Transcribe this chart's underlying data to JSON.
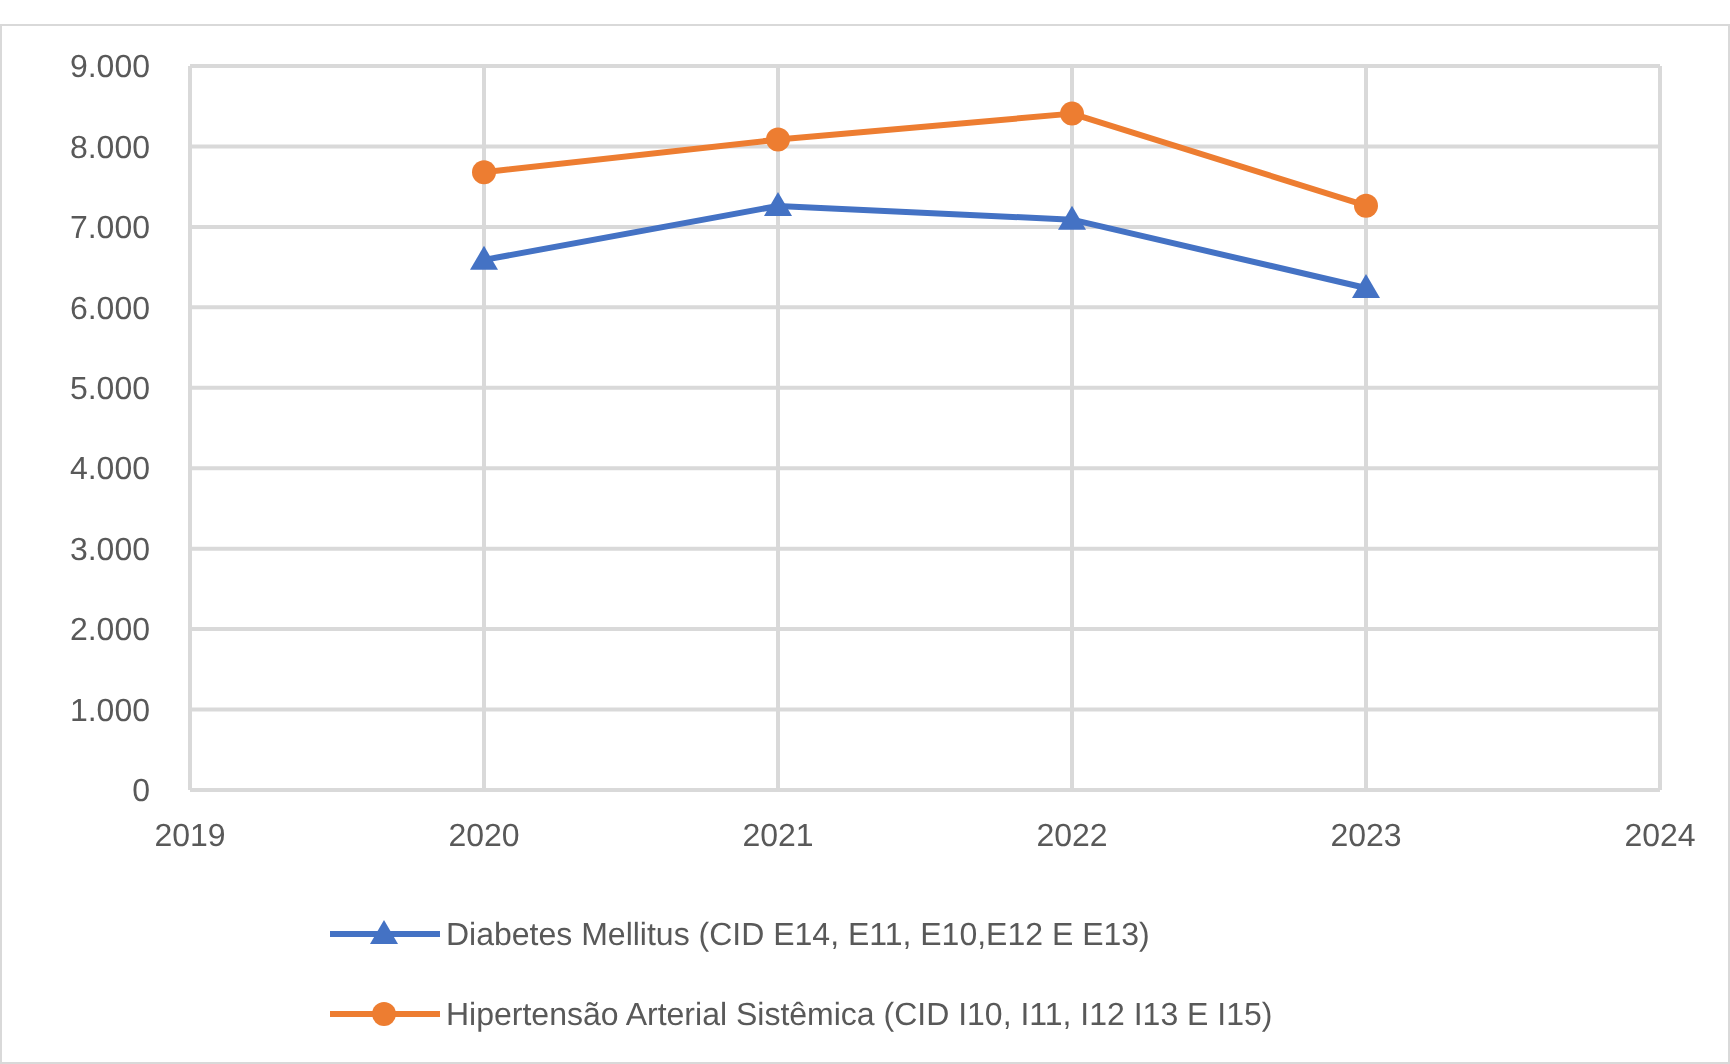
{
  "chart_data": {
    "type": "line",
    "x": [
      2020,
      2021,
      2022,
      2023
    ],
    "xlim": [
      2019,
      2024
    ],
    "xticks": [
      2019,
      2020,
      2021,
      2022,
      2023,
      2024
    ],
    "ylim": [
      0,
      9000
    ],
    "yticks": [
      {
        "value": 0,
        "label": "0"
      },
      {
        "value": 1000,
        "label": "1.000"
      },
      {
        "value": 2000,
        "label": "2.000"
      },
      {
        "value": 3000,
        "label": "3.000"
      },
      {
        "value": 4000,
        "label": "4.000"
      },
      {
        "value": 5000,
        "label": "5.000"
      },
      {
        "value": 6000,
        "label": "6.000"
      },
      {
        "value": 7000,
        "label": "7.000"
      },
      {
        "value": 8000,
        "label": "8.000"
      },
      {
        "value": 9000,
        "label": "9.000"
      }
    ],
    "grid": true,
    "legend": "bottom",
    "line_style": "solid",
    "series": [
      {
        "name": "Diabetes Mellitus (CID E14, E11, E10,E12 E E13)",
        "color": "#4472c4",
        "marker": "triangle",
        "values": [
          6590,
          7260,
          7090,
          6240
        ]
      },
      {
        "name": "Hipertensão Arterial Sistêmica (CID I10, I11, I12 I13 E I15)",
        "color": "#ed7d31",
        "marker": "circle",
        "values": [
          7680,
          8085,
          8408,
          7264
        ]
      }
    ]
  }
}
